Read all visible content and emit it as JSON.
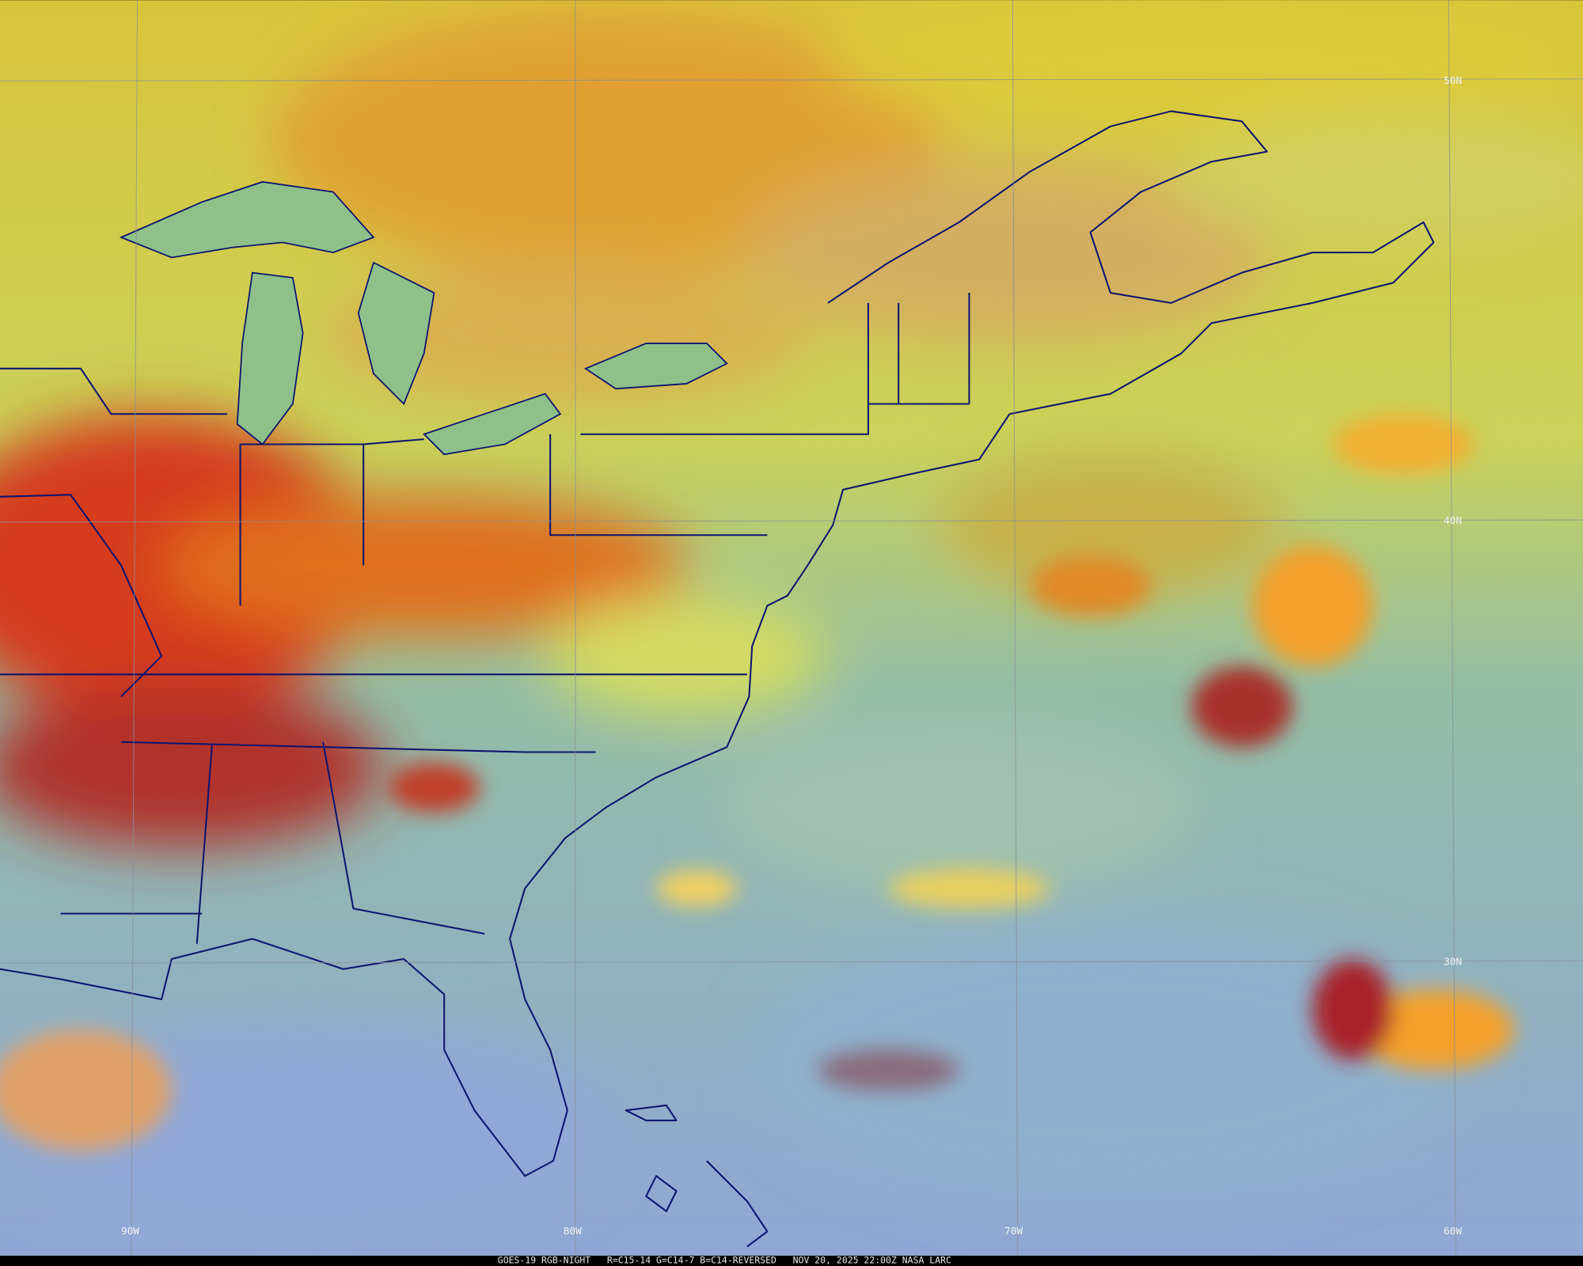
{
  "grid_labels": {
    "latitude": [
      "50N",
      "40N",
      "30N"
    ],
    "longitude": [
      "90W",
      "80W",
      "70W",
      "60W"
    ]
  },
  "footer": "GOES-19 RGB-NIGHT   R=C15-14 G=C14-7 B=C14-REVERSED   NOV 20, 2025 22:00Z NASA LARC"
}
